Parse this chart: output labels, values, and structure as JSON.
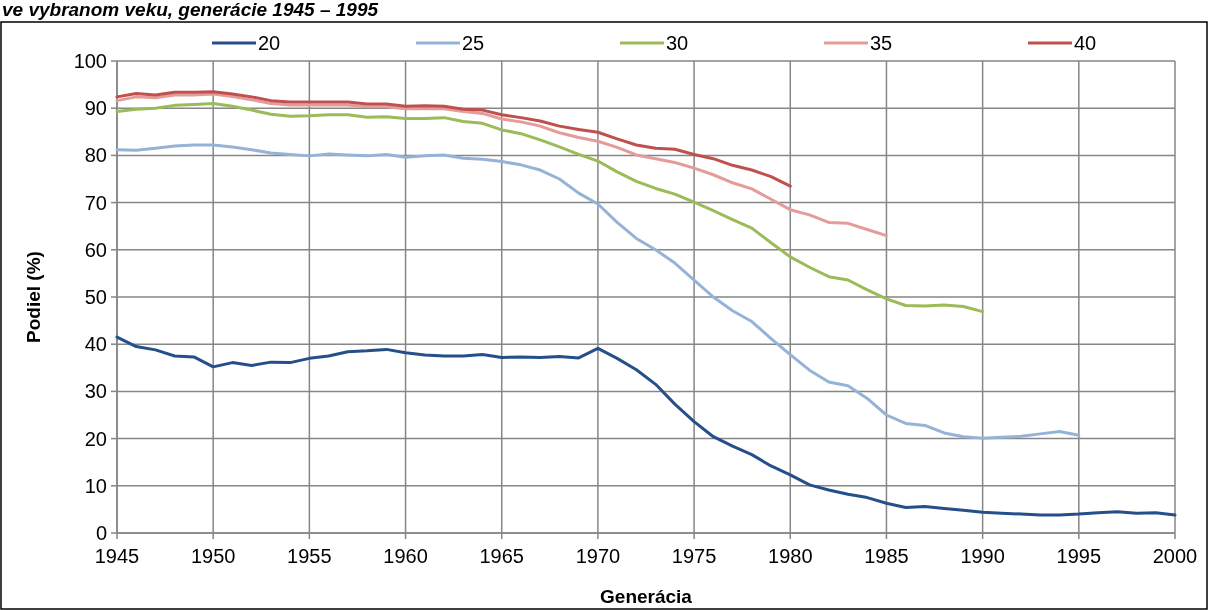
{
  "chart_data": {
    "type": "line",
    "title": "ve vybranom veku, generácie 1945 – 1995",
    "xlabel": "Generácia",
    "ylabel": "Podiel (%)",
    "x": [
      1945,
      1946,
      1947,
      1948,
      1949,
      1950,
      1951,
      1952,
      1953,
      1954,
      1955,
      1956,
      1957,
      1958,
      1959,
      1960,
      1961,
      1962,
      1963,
      1964,
      1965,
      1966,
      1967,
      1968,
      1969,
      1970,
      1971,
      1972,
      1973,
      1974,
      1975,
      1976,
      1977,
      1978,
      1979,
      1980,
      1981,
      1982,
      1983,
      1984,
      1985,
      1986,
      1987,
      1988,
      1989,
      1990,
      1991,
      1992,
      1993,
      1994,
      1995,
      1996,
      1997,
      1998,
      1999,
      2000
    ],
    "xlim": [
      1945,
      2000
    ],
    "xticks": [
      1945,
      1950,
      1955,
      1960,
      1965,
      1970,
      1975,
      1980,
      1985,
      1990,
      1995,
      2000
    ],
    "ylim": [
      0,
      100
    ],
    "yticks": [
      0,
      10,
      20,
      30,
      40,
      50,
      60,
      70,
      80,
      90,
      100
    ],
    "grid": true,
    "legend": "top",
    "line_style": "solid",
    "marker": "none",
    "series": [
      {
        "name": "20",
        "color": "#254f8a",
        "values": [
          41.5,
          39.5,
          38.8,
          37.5,
          37.3,
          35.2,
          36.1,
          35.5,
          36.2,
          36.1,
          37.0,
          37.5,
          38.4,
          38.6,
          38.9,
          38.2,
          37.7,
          37.5,
          37.5,
          37.8,
          37.2,
          37.3,
          37.2,
          37.4,
          37.1,
          39.1,
          37.0,
          34.6,
          31.5,
          27.3,
          23.6,
          20.4,
          18.4,
          16.6,
          14.2,
          12.3,
          10.2,
          9.1,
          8.2,
          7.5,
          6.3,
          5.4,
          5.6,
          5.2,
          4.8,
          4.4,
          4.2,
          4.0,
          3.8,
          3.8,
          4.0,
          4.3,
          4.5,
          4.2,
          4.3,
          3.8
        ]
      },
      {
        "name": "25",
        "color": "#95b3d7",
        "values": [
          81.2,
          81.1,
          81.5,
          82.0,
          82.2,
          82.2,
          81.8,
          81.2,
          80.5,
          80.2,
          79.9,
          80.3,
          80.1,
          79.9,
          80.2,
          79.6,
          79.9,
          80.1,
          79.4,
          79.2,
          78.7,
          78.0,
          76.9,
          75.0,
          72.0,
          69.7,
          65.8,
          62.4,
          60.0,
          57.2,
          53.6,
          50.0,
          47.1,
          44.8,
          41.2,
          37.8,
          34.5,
          32.0,
          31.2,
          28.5,
          25.0,
          23.2,
          22.8,
          21.2,
          20.4,
          20.1,
          20.3,
          20.5,
          21.0,
          21.5,
          20.7,
          null,
          null,
          null,
          null,
          null
        ]
      },
      {
        "name": "30",
        "color": "#9bbb59",
        "values": [
          89.3,
          89.8,
          90.0,
          90.6,
          90.8,
          91.0,
          90.4,
          89.6,
          88.7,
          88.3,
          88.4,
          88.6,
          88.6,
          88.1,
          88.2,
          87.8,
          87.8,
          88.0,
          87.2,
          86.8,
          85.4,
          84.6,
          83.3,
          81.8,
          80.2,
          78.8,
          76.5,
          74.5,
          73.0,
          71.8,
          70.1,
          68.3,
          66.4,
          64.6,
          61.5,
          58.5,
          56.3,
          54.3,
          53.6,
          51.5,
          49.6,
          48.2,
          48.1,
          48.3,
          48.0,
          46.9,
          null,
          null,
          null,
          null,
          null,
          null,
          null,
          null,
          null,
          null
        ]
      },
      {
        "name": "35",
        "color": "#e39c9a",
        "values": [
          91.6,
          92.4,
          92.2,
          92.8,
          92.8,
          93.0,
          92.5,
          91.8,
          91.0,
          90.7,
          90.7,
          90.7,
          90.7,
          90.3,
          90.3,
          89.9,
          89.9,
          89.9,
          89.3,
          88.9,
          87.7,
          87.1,
          86.2,
          84.8,
          83.8,
          83.0,
          81.7,
          80.1,
          79.3,
          78.5,
          77.3,
          75.9,
          74.2,
          72.9,
          70.7,
          68.5,
          67.4,
          65.8,
          65.6,
          64.3,
          63.0,
          null,
          null,
          null,
          null,
          null,
          null,
          null,
          null,
          null,
          null,
          null,
          null,
          null,
          null,
          null
        ]
      },
      {
        "name": "40",
        "color": "#c0504d",
        "values": [
          92.4,
          93.1,
          92.8,
          93.4,
          93.4,
          93.5,
          93.0,
          92.4,
          91.6,
          91.3,
          91.3,
          91.3,
          91.3,
          90.9,
          90.9,
          90.4,
          90.5,
          90.4,
          89.8,
          89.6,
          88.6,
          88.0,
          87.3,
          86.2,
          85.5,
          84.9,
          83.5,
          82.2,
          81.5,
          81.3,
          80.2,
          79.3,
          77.9,
          76.9,
          75.5,
          73.5,
          null,
          null,
          null,
          null,
          null,
          null,
          null,
          null,
          null,
          null,
          null,
          null,
          null,
          null,
          null,
          null,
          null,
          null,
          null,
          null
        ]
      }
    ]
  }
}
